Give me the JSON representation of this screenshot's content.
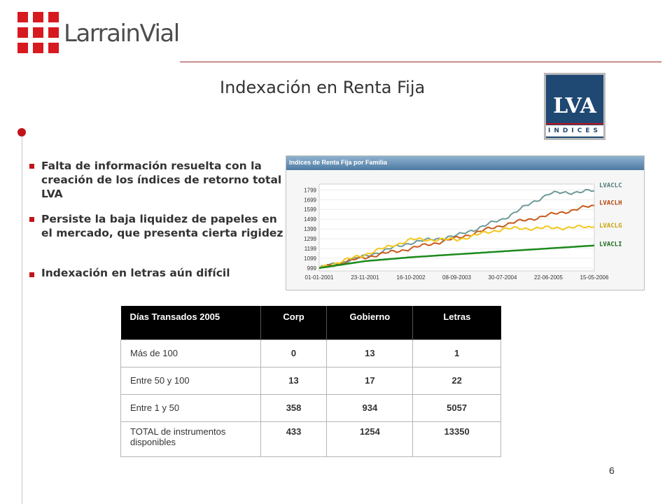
{
  "logo": {
    "brand": "LarrainVial",
    "brand_color": "#d71920",
    "icon": "red-grid-logo-icon"
  },
  "title": "Indexación en Renta Fija",
  "badge": {
    "letters": "LVA",
    "subtitle": "INDICES",
    "color": "#1f4872"
  },
  "bullets": [
    "Falta de información resuelta con la creación de los índices de retorno total LVA",
    "Persiste la baja liquidez de papeles en el mercado, que presenta cierta rigidez",
    "Indexación en letras aún difícil"
  ],
  "chart_data": {
    "type": "line",
    "title": "Indices de Renta Fija por Familia",
    "x": [
      "01-01-2001",
      "23-11-2001",
      "16-10-2002",
      "08-09-2003",
      "30-07-2004",
      "22-06-2005",
      "15-05-2006"
    ],
    "y_ticks": [
      999,
      1099,
      1199,
      1299,
      1399,
      1499,
      1599,
      1699,
      1799
    ],
    "ylim": [
      970,
      1830
    ],
    "legend": "right",
    "series": [
      {
        "name": "LVACLC",
        "color": "#6e9a99",
        "values": [
          999,
          1120,
          1260,
          1330,
          1500,
          1760,
          1790
        ]
      },
      {
        "name": "LVACLH",
        "color": "#c85a1b",
        "values": [
          999,
          1110,
          1200,
          1305,
          1440,
          1540,
          1640
        ]
      },
      {
        "name": "LVACLG",
        "color": "#f2c81c",
        "values": [
          999,
          1140,
          1290,
          1290,
          1400,
          1410,
          1420
        ]
      },
      {
        "name": "LVACLI",
        "color": "#1a8a1a",
        "values": [
          999,
          1070,
          1110,
          1140,
          1170,
          1200,
          1230
        ]
      }
    ],
    "label_color": "#003399"
  },
  "table": {
    "headers": [
      "Días Transados 2005",
      "Corp",
      "Gobierno",
      "Letras"
    ],
    "rows": [
      [
        "Más de 100",
        "0",
        "13",
        "1"
      ],
      [
        "Entre 50 y 100",
        "13",
        "17",
        "22"
      ],
      [
        "Entre 1 y 50",
        "358",
        "934",
        "5057"
      ],
      [
        "TOTAL de instrumentos disponibles",
        "433",
        "1254",
        "13350"
      ]
    ]
  },
  "page_number": "6"
}
